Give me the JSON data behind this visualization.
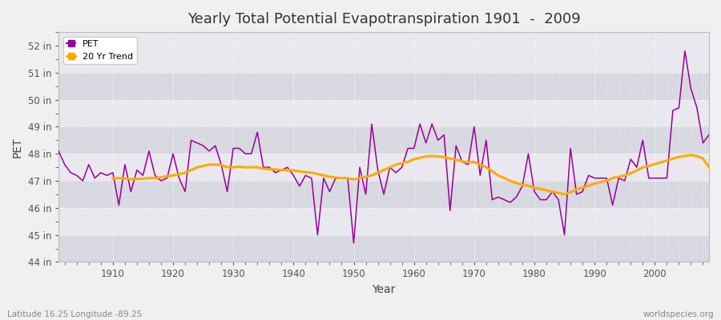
{
  "title": "Yearly Total Potential Evapotranspiration 1901  -  2009",
  "xlabel": "Year",
  "ylabel": "PET",
  "lat_lon_label": "Latitude 16.25 Longitude -89.25",
  "watermark": "worldspecies.org",
  "pet_color": "#990099",
  "trend_color": "#ffaa00",
  "background_color": "#f0f0f0",
  "plot_bg_color": "#f0f0f0",
  "band_color_light": "#e8e8ee",
  "band_color_dark": "#d8d8e0",
  "ylim": [
    44,
    52.5
  ],
  "yticks": [
    44,
    45,
    46,
    47,
    48,
    49,
    50,
    51,
    52
  ],
  "ytick_labels": [
    "44 in",
    "45 in",
    "46 in",
    "47 in",
    "48 in",
    "49 in",
    "50 in",
    "51 in",
    "52 in"
  ],
  "xlim": [
    1901,
    2009
  ],
  "xticks": [
    1910,
    1920,
    1930,
    1940,
    1950,
    1960,
    1970,
    1980,
    1990,
    2000
  ],
  "years": [
    1901,
    1902,
    1903,
    1904,
    1905,
    1906,
    1907,
    1908,
    1909,
    1910,
    1911,
    1912,
    1913,
    1914,
    1915,
    1916,
    1917,
    1918,
    1919,
    1920,
    1921,
    1922,
    1923,
    1924,
    1925,
    1926,
    1927,
    1928,
    1929,
    1930,
    1931,
    1932,
    1933,
    1934,
    1935,
    1936,
    1937,
    1938,
    1939,
    1940,
    1941,
    1942,
    1943,
    1944,
    1945,
    1946,
    1947,
    1948,
    1949,
    1950,
    1951,
    1952,
    1953,
    1954,
    1955,
    1956,
    1957,
    1958,
    1959,
    1960,
    1961,
    1962,
    1963,
    1964,
    1965,
    1966,
    1967,
    1968,
    1969,
    1970,
    1971,
    1972,
    1973,
    1974,
    1975,
    1976,
    1977,
    1978,
    1979,
    1980,
    1981,
    1982,
    1983,
    1984,
    1985,
    1986,
    1987,
    1988,
    1989,
    1990,
    1991,
    1992,
    1993,
    1994,
    1995,
    1996,
    1997,
    1998,
    1999,
    2000,
    2001,
    2002,
    2003,
    2004,
    2005,
    2006,
    2007,
    2008,
    2009
  ],
  "pet_values": [
    48.1,
    47.6,
    47.3,
    47.2,
    47.0,
    47.6,
    47.1,
    47.3,
    47.2,
    47.3,
    46.1,
    47.6,
    46.6,
    47.4,
    47.2,
    48.1,
    47.2,
    47.0,
    47.1,
    48.0,
    47.1,
    46.6,
    48.5,
    48.4,
    48.3,
    48.1,
    48.3,
    47.6,
    46.6,
    48.2,
    48.2,
    48.0,
    48.0,
    48.8,
    47.5,
    47.5,
    47.3,
    47.4,
    47.5,
    47.2,
    46.8,
    47.2,
    47.1,
    45.0,
    47.1,
    46.6,
    47.1,
    47.1,
    47.1,
    44.7,
    47.5,
    46.5,
    49.1,
    47.4,
    46.5,
    47.5,
    47.3,
    47.5,
    48.2,
    48.2,
    49.1,
    48.4,
    49.1,
    48.5,
    48.7,
    45.9,
    48.3,
    47.7,
    47.6,
    49.0,
    47.2,
    48.5,
    46.3,
    46.4,
    46.3,
    46.2,
    46.4,
    46.8,
    48.0,
    46.6,
    46.3,
    46.3,
    46.6,
    46.3,
    45.0,
    48.2,
    46.5,
    46.6,
    47.2,
    47.1,
    47.1,
    47.1,
    46.1,
    47.1,
    47.0,
    47.8,
    47.5,
    48.5,
    47.1,
    47.1,
    47.1,
    47.1,
    49.6,
    49.7,
    51.8,
    50.4,
    49.7,
    48.4,
    48.7
  ],
  "trend_values": [
    null,
    null,
    null,
    null,
    null,
    null,
    null,
    null,
    null,
    47.1,
    47.1,
    47.08,
    47.06,
    47.07,
    47.08,
    47.1,
    47.1,
    47.13,
    47.17,
    47.2,
    47.25,
    47.3,
    47.4,
    47.5,
    47.55,
    47.6,
    47.6,
    47.58,
    47.5,
    47.5,
    47.52,
    47.5,
    47.5,
    47.5,
    47.45,
    47.43,
    47.42,
    47.4,
    47.4,
    47.38,
    47.35,
    47.32,
    47.3,
    47.25,
    47.2,
    47.15,
    47.12,
    47.1,
    47.1,
    47.05,
    47.1,
    47.15,
    47.2,
    47.3,
    47.4,
    47.5,
    47.6,
    47.65,
    47.7,
    47.8,
    47.85,
    47.9,
    47.92,
    47.9,
    47.88,
    47.82,
    47.78,
    47.72,
    47.68,
    47.7,
    47.6,
    47.5,
    47.35,
    47.2,
    47.1,
    47.0,
    46.92,
    46.85,
    46.82,
    46.75,
    46.7,
    46.65,
    46.6,
    46.55,
    46.5,
    46.58,
    46.68,
    46.75,
    46.82,
    46.9,
    46.95,
    47.0,
    47.1,
    47.15,
    47.2,
    47.28,
    47.38,
    47.5,
    47.55,
    47.62,
    47.68,
    47.75,
    47.82,
    47.88,
    47.92,
    47.95,
    47.92,
    47.82,
    47.5
  ]
}
